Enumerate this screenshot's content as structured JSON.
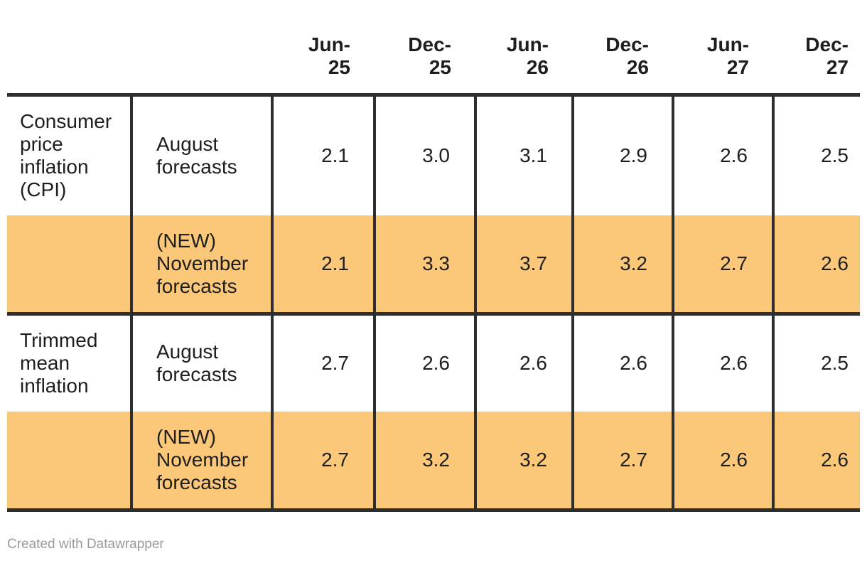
{
  "page": {
    "background": "#FFFFFF"
  },
  "chart_data": {
    "type": "table",
    "columns": [
      "Jun-25",
      "Dec-25",
      "Jun-26",
      "Dec-26",
      "Jun-27",
      "Dec-27"
    ],
    "row_groups": [
      {
        "group": "Consumer price inflation (CPI)",
        "series": [
          {
            "name": "August forecasts",
            "values": [
              2.1,
              3.0,
              3.1,
              2.9,
              2.6,
              2.5
            ],
            "highlighted": false
          },
          {
            "name": "(NEW) November forecasts",
            "values": [
              2.1,
              3.3,
              3.7,
              3.2,
              2.7,
              2.6
            ],
            "highlighted": true
          }
        ]
      },
      {
        "group": "Trimmed mean inflation",
        "series": [
          {
            "name": "August forecasts",
            "values": [
              2.7,
              2.6,
              2.6,
              2.6,
              2.6,
              2.5
            ],
            "highlighted": false
          },
          {
            "name": "(NEW) November forecasts",
            "values": [
              2.7,
              3.2,
              3.2,
              2.7,
              2.6,
              2.6
            ],
            "highlighted": true
          }
        ]
      }
    ],
    "legend_position": "none",
    "grid": "borders-only"
  },
  "table": {
    "column_headers": [
      "Jun-\n25",
      "Dec-\n25",
      "Jun-\n26",
      "Dec-\n26",
      "Jun-\n27",
      "Dec-\n27"
    ],
    "rows": [
      {
        "group_label": "Consumer\nprice\ninflation\n(CPI)",
        "series_label": "August\nforecasts",
        "values": [
          "2.1",
          "3.0",
          "3.1",
          "2.9",
          "2.6",
          "2.5"
        ]
      },
      {
        "group_label": "",
        "series_label": "(NEW)\nNovember\nforecasts",
        "values": [
          "2.1",
          "3.3",
          "3.7",
          "3.2",
          "2.7",
          "2.6"
        ]
      },
      {
        "group_label": "Trimmed\nmean\ninflation",
        "series_label": "August\nforecasts",
        "values": [
          "2.7",
          "2.6",
          "2.6",
          "2.6",
          "2.6",
          "2.5"
        ]
      },
      {
        "group_label": "",
        "series_label": "(NEW)\nNovember\nforecasts",
        "values": [
          "2.7",
          "3.2",
          "3.2",
          "2.7",
          "2.6",
          "2.6"
        ]
      }
    ]
  },
  "footer": {
    "credit": "Created with Datawrapper"
  },
  "colors": {
    "highlight_row_background": "#FBC778",
    "border": "#2E2E2E",
    "text": "#1E1E1E",
    "credit_text": "#9A9A9A"
  }
}
